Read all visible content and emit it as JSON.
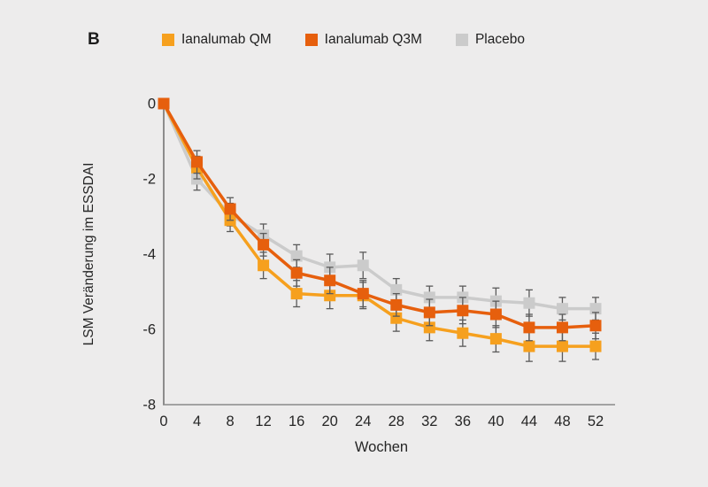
{
  "panel": {
    "label": "B"
  },
  "colors": {
    "background": "#EDECEC",
    "axis": "#8A8A8A",
    "error_bar": "#5A5A5A",
    "text": "#262626"
  },
  "chart_data": {
    "type": "line",
    "panel_label": "B",
    "title": "",
    "xlabel": "Wochen",
    "ylabel": "LSM Veränderung im ESSDAI",
    "x": [
      0,
      4,
      8,
      12,
      16,
      20,
      24,
      28,
      32,
      36,
      40,
      44,
      48,
      52
    ],
    "x_tick_labels": [
      "0",
      "4",
      "8",
      "12",
      "16",
      "20",
      "24",
      "28",
      "32",
      "36",
      "40",
      "44",
      "48",
      "52"
    ],
    "y_ticks": [
      0,
      -2,
      -4,
      -6,
      -8
    ],
    "y_tick_labels": [
      "0",
      "-2",
      "-4",
      "-6",
      "-8"
    ],
    "xlim": [
      0,
      52
    ],
    "ylim": [
      -8,
      0
    ],
    "grid": false,
    "legend_position": "top",
    "marker": "square",
    "series": [
      {
        "name": "Ianalumab QM",
        "color": "#F6A01E",
        "values": [
          0,
          -1.7,
          -3.1,
          -4.3,
          -5.05,
          -5.1,
          -5.1,
          -5.7,
          -5.95,
          -6.1,
          -6.25,
          -6.45,
          -6.45,
          -6.45
        ],
        "errors": [
          0,
          0.3,
          0.3,
          0.35,
          0.35,
          0.35,
          0.35,
          0.35,
          0.35,
          0.35,
          0.35,
          0.4,
          0.4,
          0.35
        ]
      },
      {
        "name": "Ianalumab Q3M",
        "color": "#E65F0D",
        "values": [
          0,
          -1.55,
          -2.8,
          -3.75,
          -4.5,
          -4.7,
          -5.05,
          -5.35,
          -5.55,
          -5.5,
          -5.6,
          -5.95,
          -5.95,
          -5.9
        ],
        "errors": [
          0,
          0.3,
          0.3,
          0.3,
          0.35,
          0.35,
          0.35,
          0.3,
          0.35,
          0.35,
          0.35,
          0.35,
          0.35,
          0.35
        ]
      },
      {
        "name": "Placebo",
        "color": "#CBCBCB",
        "values": [
          0,
          -2.0,
          -2.95,
          -3.5,
          -4.05,
          -4.35,
          -4.3,
          -4.95,
          -5.15,
          -5.15,
          -5.25,
          -5.3,
          -5.45,
          -5.45
        ],
        "errors": [
          0,
          0.3,
          0.3,
          0.3,
          0.3,
          0.35,
          0.35,
          0.3,
          0.3,
          0.3,
          0.35,
          0.35,
          0.3,
          0.3
        ]
      }
    ],
    "draw_order": [
      2,
      0,
      1
    ]
  }
}
